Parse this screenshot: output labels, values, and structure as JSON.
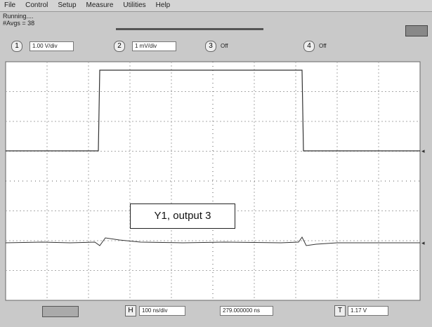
{
  "menu": [
    "File",
    "Control",
    "Setup",
    "Measure",
    "Utilities",
    "Help"
  ],
  "status": {
    "state": "Running....",
    "averages": "#Avgs = 38"
  },
  "channels": [
    {
      "number": "1",
      "scale": "1.00 V/div"
    },
    {
      "number": "2",
      "scale": "1 mV/div"
    },
    {
      "number": "3",
      "scale": "Off"
    },
    {
      "number": "4",
      "scale": "Off"
    }
  ],
  "annotation": "Y1, output 3",
  "timebase": {
    "label": "H",
    "scale": "100 ns/div",
    "position": "279.000000 ns"
  },
  "trigger": {
    "label": "T",
    "level": "1.17 V"
  }
}
